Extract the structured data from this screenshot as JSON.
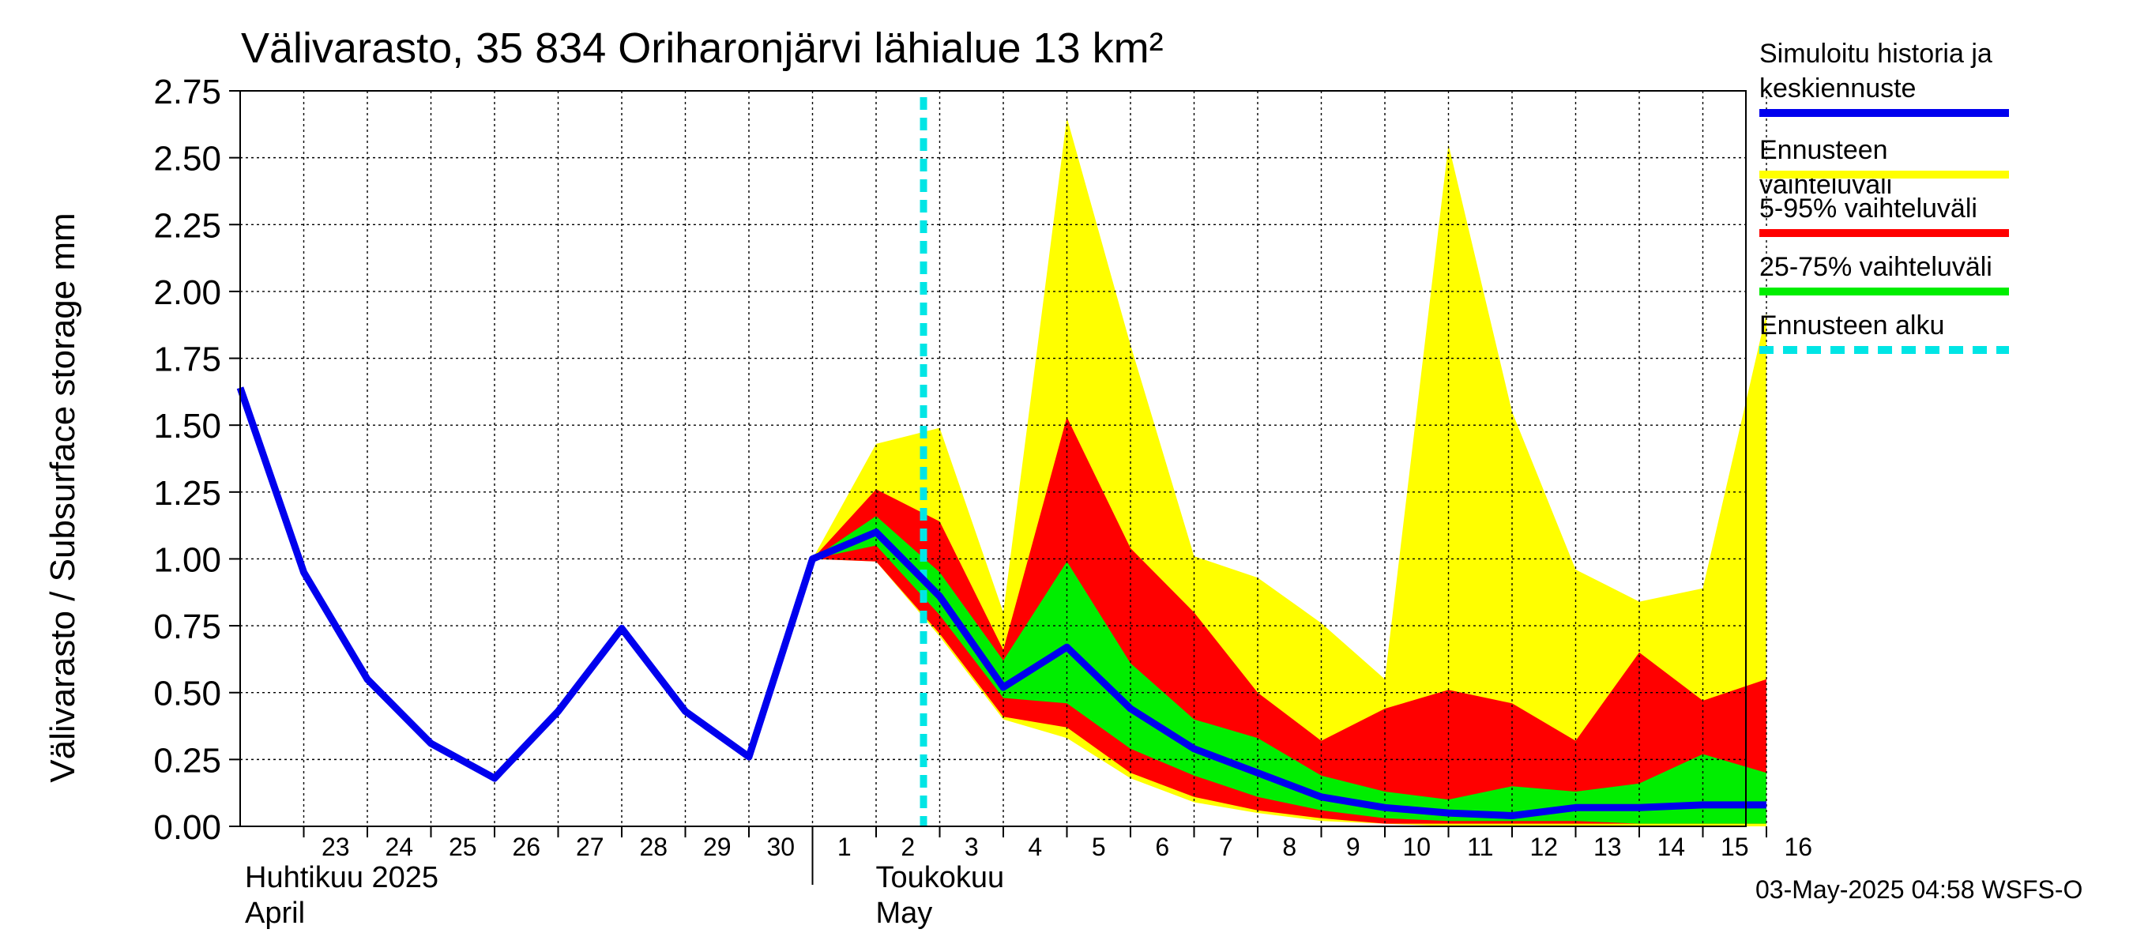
{
  "chart_data": {
    "type": "area",
    "title": "Välivarasto, 35 834 Oriharonjärvi lähialue 13 km²",
    "ylabel": "Välivarasto / Subsurface storage  mm",
    "ylim": [
      0,
      2.75
    ],
    "yticks": [
      "0.00",
      "0.25",
      "0.50",
      "0.75",
      "1.00",
      "1.25",
      "1.50",
      "1.75",
      "2.00",
      "2.25",
      "2.50",
      "2.75"
    ],
    "x_day_labels": [
      "23",
      "24",
      "25",
      "26",
      "27",
      "28",
      "29",
      "30",
      "1",
      "2",
      "3",
      "4",
      "5",
      "6",
      "7",
      "8",
      "9",
      "10",
      "11",
      "12",
      "13",
      "14",
      "15",
      "16"
    ],
    "month_labels": [
      {
        "fi": "Huhtikuu  2025",
        "en": "April"
      },
      {
        "fi": "Toukokuu",
        "en": "May"
      }
    ],
    "grid": true,
    "legend_position": "right",
    "forecast_start": "2025-05-02",
    "history": {
      "dates": [
        "2025-04-22",
        "2025-04-23",
        "2025-04-24",
        "2025-04-25",
        "2025-04-26",
        "2025-04-27",
        "2025-04-28",
        "2025-04-29",
        "2025-04-30",
        "2025-05-01"
      ],
      "values": [
        1.64,
        0.95,
        0.55,
        0.31,
        0.18,
        0.43,
        0.74,
        0.43,
        0.26,
        1.0
      ]
    },
    "forecast": {
      "dates": [
        "2025-05-01",
        "2025-05-02",
        "2025-05-03",
        "2025-05-04",
        "2025-05-05",
        "2025-05-06",
        "2025-05-07",
        "2025-05-08",
        "2025-05-09",
        "2025-05-10",
        "2025-05-11",
        "2025-05-12",
        "2025-05-13",
        "2025-05-14",
        "2025-05-15",
        "2025-05-16"
      ],
      "max": [
        1.0,
        1.43,
        1.49,
        0.8,
        2.65,
        1.8,
        1.01,
        0.93,
        0.76,
        0.55,
        2.55,
        1.55,
        0.96,
        0.84,
        0.89,
        1.92
      ],
      "p95": [
        1.0,
        1.26,
        1.14,
        0.66,
        1.53,
        1.04,
        0.8,
        0.5,
        0.32,
        0.44,
        0.51,
        0.46,
        0.32,
        0.65,
        0.47,
        0.55
      ],
      "p75": [
        1.0,
        1.16,
        0.95,
        0.62,
        0.99,
        0.61,
        0.4,
        0.33,
        0.19,
        0.13,
        0.1,
        0.15,
        0.13,
        0.16,
        0.27,
        0.2
      ],
      "median": [
        1.0,
        1.1,
        0.86,
        0.52,
        0.67,
        0.44,
        0.29,
        0.2,
        0.11,
        0.07,
        0.05,
        0.04,
        0.07,
        0.07,
        0.08,
        0.08
      ],
      "p25": [
        1.0,
        1.05,
        0.79,
        0.48,
        0.46,
        0.29,
        0.19,
        0.11,
        0.06,
        0.03,
        0.02,
        0.02,
        0.02,
        0.01,
        0.01,
        0.01
      ],
      "p5": [
        1.0,
        0.99,
        0.72,
        0.41,
        0.37,
        0.2,
        0.11,
        0.06,
        0.03,
        0.01,
        0.01,
        0.01,
        0.01,
        0.01,
        0.01,
        0.01
      ],
      "min": [
        1.0,
        0.99,
        0.71,
        0.4,
        0.33,
        0.18,
        0.09,
        0.05,
        0.02,
        0.01,
        0.0,
        0.0,
        0.0,
        0.0,
        0.0,
        0.0
      ]
    },
    "series": [
      {
        "name": "Simuloitu historia ja keskiennuste",
        "color": "#0000ee"
      },
      {
        "name": "Ennusteen vaihteluväli",
        "color": "#ffff00"
      },
      {
        "name": "5-95% vaihteluväli",
        "color": "#ff0000"
      },
      {
        "name": "25-75% vaihteluväli",
        "color": "#00ee00"
      },
      {
        "name": "Ennusteen alku",
        "color": "#00e5e5"
      }
    ]
  },
  "legend": [
    {
      "line1": "Simuloitu historia ja",
      "line2": "keskiennuste"
    },
    {
      "line1": "Ennusteen vaihteluväli"
    },
    {
      "line1": "5-95% vaihteluväli"
    },
    {
      "line1": "25-75% vaihteluväli"
    },
    {
      "line1": "Ennusteen alku"
    }
  ],
  "footer": "03-May-2025 04:58 WSFS-O"
}
